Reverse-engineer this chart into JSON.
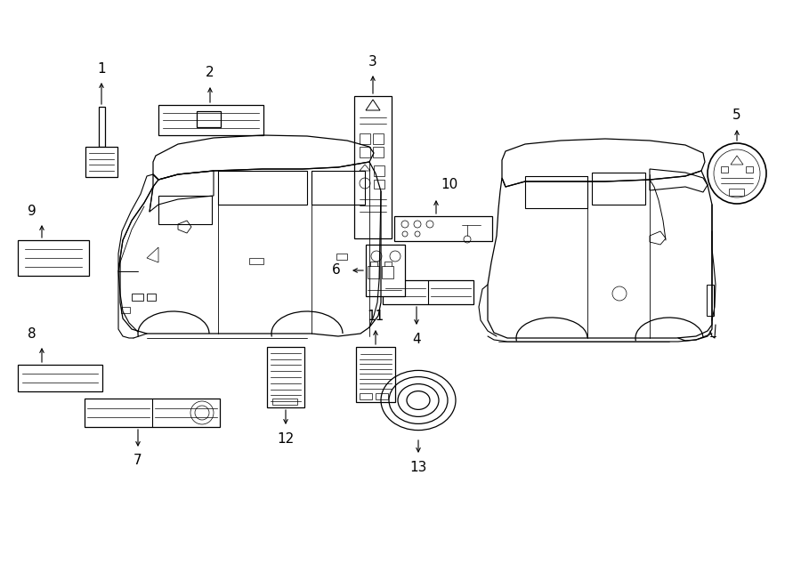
{
  "bg_color": "#ffffff",
  "line_color": "#000000",
  "lw": 0.9
}
